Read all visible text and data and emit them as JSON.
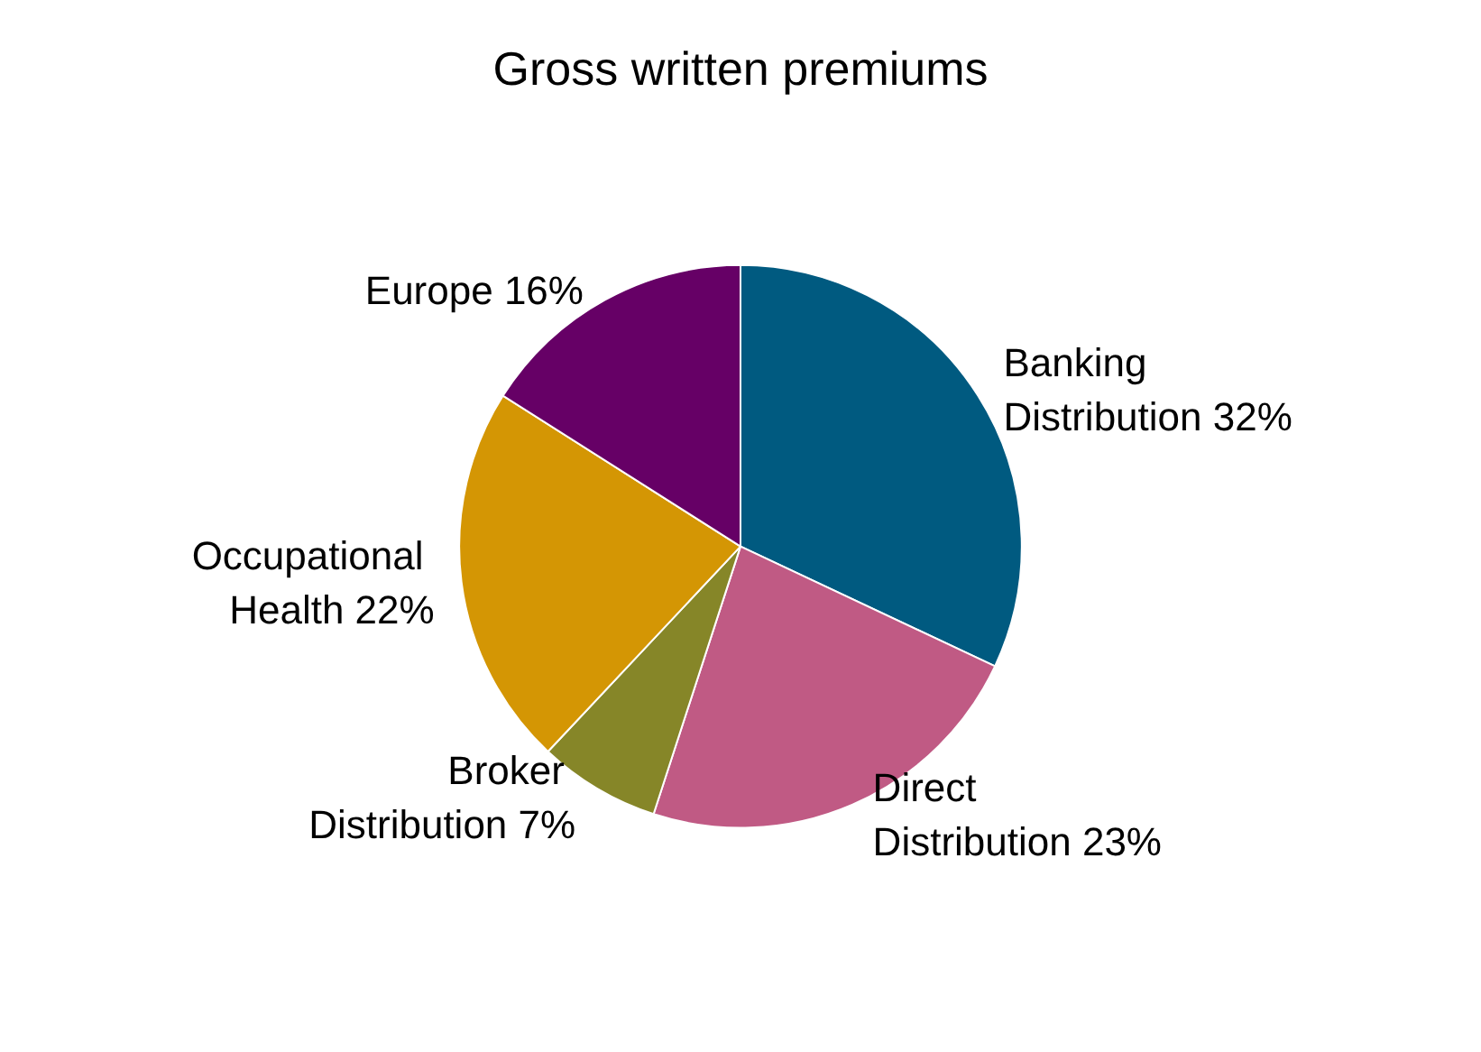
{
  "chart_data": {
    "type": "pie",
    "title": "Gross written premiums",
    "categories": [
      "Banking Distribution",
      "Direct Distribution",
      "Broker Distribution",
      "Occupational Health",
      "Europe"
    ],
    "values": [
      32,
      23,
      7,
      22,
      16
    ],
    "value_labels": [
      "32%",
      "23%",
      "7%",
      "22%",
      "16%"
    ],
    "colors": [
      "#005a80",
      "#c05a84",
      "#868628",
      "#d49604",
      "#660066"
    ],
    "legend": false
  }
}
